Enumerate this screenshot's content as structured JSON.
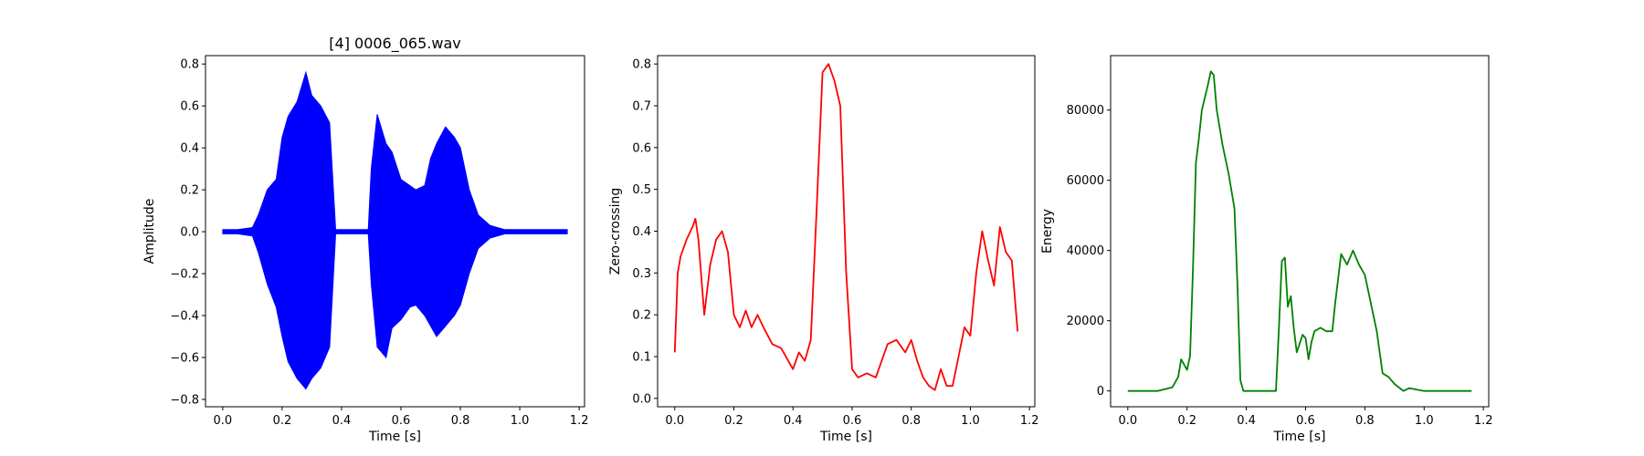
{
  "chart_data": [
    {
      "type": "line",
      "title": "[4] 0006_065.wav",
      "xlabel": "Time [s]",
      "ylabel": "Amplitude",
      "color": "#0000ff",
      "xlim": [
        -0.058,
        1.218
      ],
      "ylim": [
        -0.835,
        0.84
      ],
      "xticks": [
        "0.0",
        "0.2",
        "0.4",
        "0.6",
        "0.8",
        "1.0",
        "1.2"
      ],
      "yticks": [
        "−0.8",
        "−0.6",
        "−0.4",
        "−0.2",
        "0.0",
        "0.2",
        "0.4",
        "0.6",
        "0.8"
      ],
      "grid": false,
      "series": [
        {
          "waveform": true,
          "x": [
            0.0,
            0.05,
            0.1,
            0.12,
            0.15,
            0.18,
            0.2,
            0.22,
            0.25,
            0.28,
            0.3,
            0.33,
            0.36,
            0.38,
            0.4,
            0.45,
            0.49,
            0.5,
            0.52,
            0.55,
            0.57,
            0.6,
            0.63,
            0.65,
            0.68,
            0.7,
            0.72,
            0.75,
            0.78,
            0.8,
            0.83,
            0.86,
            0.9,
            0.95,
            1.0,
            1.1,
            1.16
          ],
          "upper": [
            0.01,
            0.01,
            0.02,
            0.08,
            0.2,
            0.25,
            0.45,
            0.55,
            0.62,
            0.76,
            0.65,
            0.6,
            0.52,
            0.01,
            0.01,
            0.01,
            0.01,
            0.3,
            0.56,
            0.42,
            0.38,
            0.25,
            0.22,
            0.2,
            0.22,
            0.35,
            0.42,
            0.5,
            0.45,
            0.4,
            0.2,
            0.08,
            0.03,
            0.01,
            0.01,
            0.01,
            0.01
          ],
          "lower": [
            -0.01,
            -0.01,
            -0.02,
            -0.1,
            -0.25,
            -0.36,
            -0.5,
            -0.62,
            -0.7,
            -0.75,
            -0.7,
            -0.65,
            -0.55,
            -0.01,
            -0.01,
            -0.01,
            -0.01,
            -0.25,
            -0.55,
            -0.6,
            -0.46,
            -0.42,
            -0.36,
            -0.35,
            -0.4,
            -0.45,
            -0.5,
            -0.45,
            -0.4,
            -0.35,
            -0.2,
            -0.08,
            -0.03,
            -0.01,
            -0.01,
            -0.01,
            -0.01
          ]
        }
      ]
    },
    {
      "type": "line",
      "title": "",
      "xlabel": "Time [s]",
      "ylabel": "Zero-crossing",
      "color": "#ff0000",
      "xlim": [
        -0.058,
        1.218
      ],
      "ylim": [
        -0.02,
        0.82
      ],
      "xticks": [
        "0.0",
        "0.2",
        "0.4",
        "0.6",
        "0.8",
        "1.0",
        "1.2"
      ],
      "yticks": [
        "0.0",
        "0.1",
        "0.2",
        "0.3",
        "0.4",
        "0.5",
        "0.6",
        "0.7",
        "0.8"
      ],
      "grid": false,
      "series": [
        {
          "x": [
            0.0,
            0.01,
            0.02,
            0.04,
            0.06,
            0.07,
            0.08,
            0.1,
            0.12,
            0.14,
            0.16,
            0.18,
            0.2,
            0.22,
            0.24,
            0.26,
            0.28,
            0.3,
            0.33,
            0.36,
            0.4,
            0.42,
            0.44,
            0.46,
            0.48,
            0.5,
            0.52,
            0.54,
            0.56,
            0.58,
            0.6,
            0.62,
            0.65,
            0.68,
            0.72,
            0.75,
            0.78,
            0.8,
            0.82,
            0.84,
            0.86,
            0.88,
            0.9,
            0.92,
            0.94,
            0.96,
            0.98,
            1.0,
            1.02,
            1.04,
            1.06,
            1.08,
            1.1,
            1.12,
            1.14,
            1.16
          ],
          "y": [
            0.11,
            0.3,
            0.34,
            0.38,
            0.41,
            0.43,
            0.38,
            0.2,
            0.32,
            0.38,
            0.4,
            0.35,
            0.2,
            0.17,
            0.21,
            0.17,
            0.2,
            0.17,
            0.13,
            0.12,
            0.07,
            0.11,
            0.09,
            0.14,
            0.45,
            0.78,
            0.8,
            0.76,
            0.7,
            0.3,
            0.07,
            0.05,
            0.06,
            0.05,
            0.13,
            0.14,
            0.11,
            0.14,
            0.09,
            0.05,
            0.03,
            0.02,
            0.07,
            0.03,
            0.03,
            0.1,
            0.17,
            0.15,
            0.3,
            0.4,
            0.33,
            0.27,
            0.41,
            0.35,
            0.33,
            0.16
          ]
        }
      ]
    },
    {
      "type": "line",
      "title": "",
      "xlabel": "Time [s]",
      "ylabel": "Energy",
      "color": "#008000",
      "xlim": [
        -0.058,
        1.218
      ],
      "ylim": [
        -4500,
        95500
      ],
      "xticks": [
        "0.0",
        "0.2",
        "0.4",
        "0.6",
        "0.8",
        "1.0",
        "1.2"
      ],
      "yticks": [
        "0",
        "20000",
        "40000",
        "60000",
        "80000"
      ],
      "grid": false,
      "series": [
        {
          "x": [
            0.0,
            0.1,
            0.15,
            0.17,
            0.18,
            0.2,
            0.21,
            0.22,
            0.23,
            0.24,
            0.25,
            0.27,
            0.28,
            0.29,
            0.3,
            0.32,
            0.34,
            0.36,
            0.37,
            0.38,
            0.39,
            0.4,
            0.5,
            0.51,
            0.52,
            0.53,
            0.54,
            0.55,
            0.56,
            0.57,
            0.59,
            0.6,
            0.61,
            0.62,
            0.63,
            0.65,
            0.67,
            0.69,
            0.7,
            0.72,
            0.74,
            0.76,
            0.78,
            0.8,
            0.82,
            0.84,
            0.86,
            0.88,
            0.9,
            0.93,
            0.95,
            1.0,
            1.16
          ],
          "y": [
            0,
            0,
            1000,
            4000,
            9000,
            6000,
            10000,
            35000,
            65000,
            72000,
            80000,
            87000,
            91000,
            90000,
            80000,
            70000,
            62000,
            52000,
            30000,
            3000,
            0,
            0,
            0,
            18000,
            37000,
            38000,
            24000,
            27000,
            18000,
            11000,
            16000,
            15000,
            9000,
            14000,
            17000,
            18000,
            17000,
            17000,
            25000,
            39000,
            36000,
            40000,
            36000,
            33000,
            25000,
            17000,
            5000,
            4000,
            2000,
            0,
            800,
            0,
            0
          ]
        }
      ]
    }
  ]
}
